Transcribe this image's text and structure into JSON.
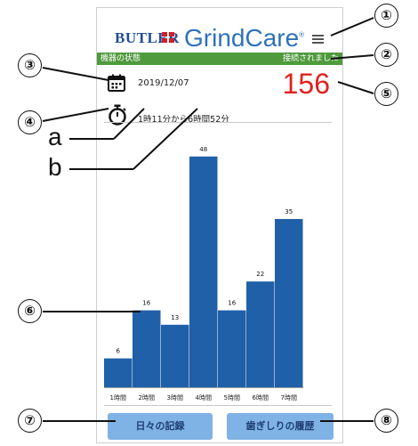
{
  "header": {
    "brand_left": "BUTLER",
    "brand_right": "GrindCare",
    "brand_mark": "®"
  },
  "status": {
    "left_label": "機器の状態",
    "right_label": "接続されました"
  },
  "session": {
    "date": "2019/12/07",
    "count": "156",
    "time_range": "1時11分から6時間52分"
  },
  "chart_data": {
    "type": "bar",
    "categories": [
      "1時間",
      "2時間",
      "3時間",
      "4時間",
      "5時間",
      "6時間",
      "7時間"
    ],
    "values": [
      6,
      16,
      13,
      48,
      16,
      22,
      35
    ],
    "value_labels": [
      "6",
      "16",
      "13",
      "48",
      "16",
      "22",
      "35"
    ],
    "ylim": [
      0,
      50
    ],
    "grid": false,
    "bar_color": "#2060a8"
  },
  "buttons": {
    "daily_record": "日々の記録",
    "grinding_history": "歯ぎしりの履歴"
  },
  "callouts": {
    "c1": "①",
    "c2": "②",
    "c3": "③",
    "c4": "④",
    "c5": "⑤",
    "c6": "⑥",
    "c7": "⑦",
    "c8": "⑧",
    "a": "a",
    "b": "b"
  },
  "colors": {
    "status_bar": "#4f9a3c",
    "count": "#e0211e",
    "button": "#7fb2e5",
    "brand": "#2f72b8"
  },
  "icons": {
    "menu": "menu-icon",
    "calendar": "calendar-icon",
    "timer": "stopwatch-icon"
  }
}
